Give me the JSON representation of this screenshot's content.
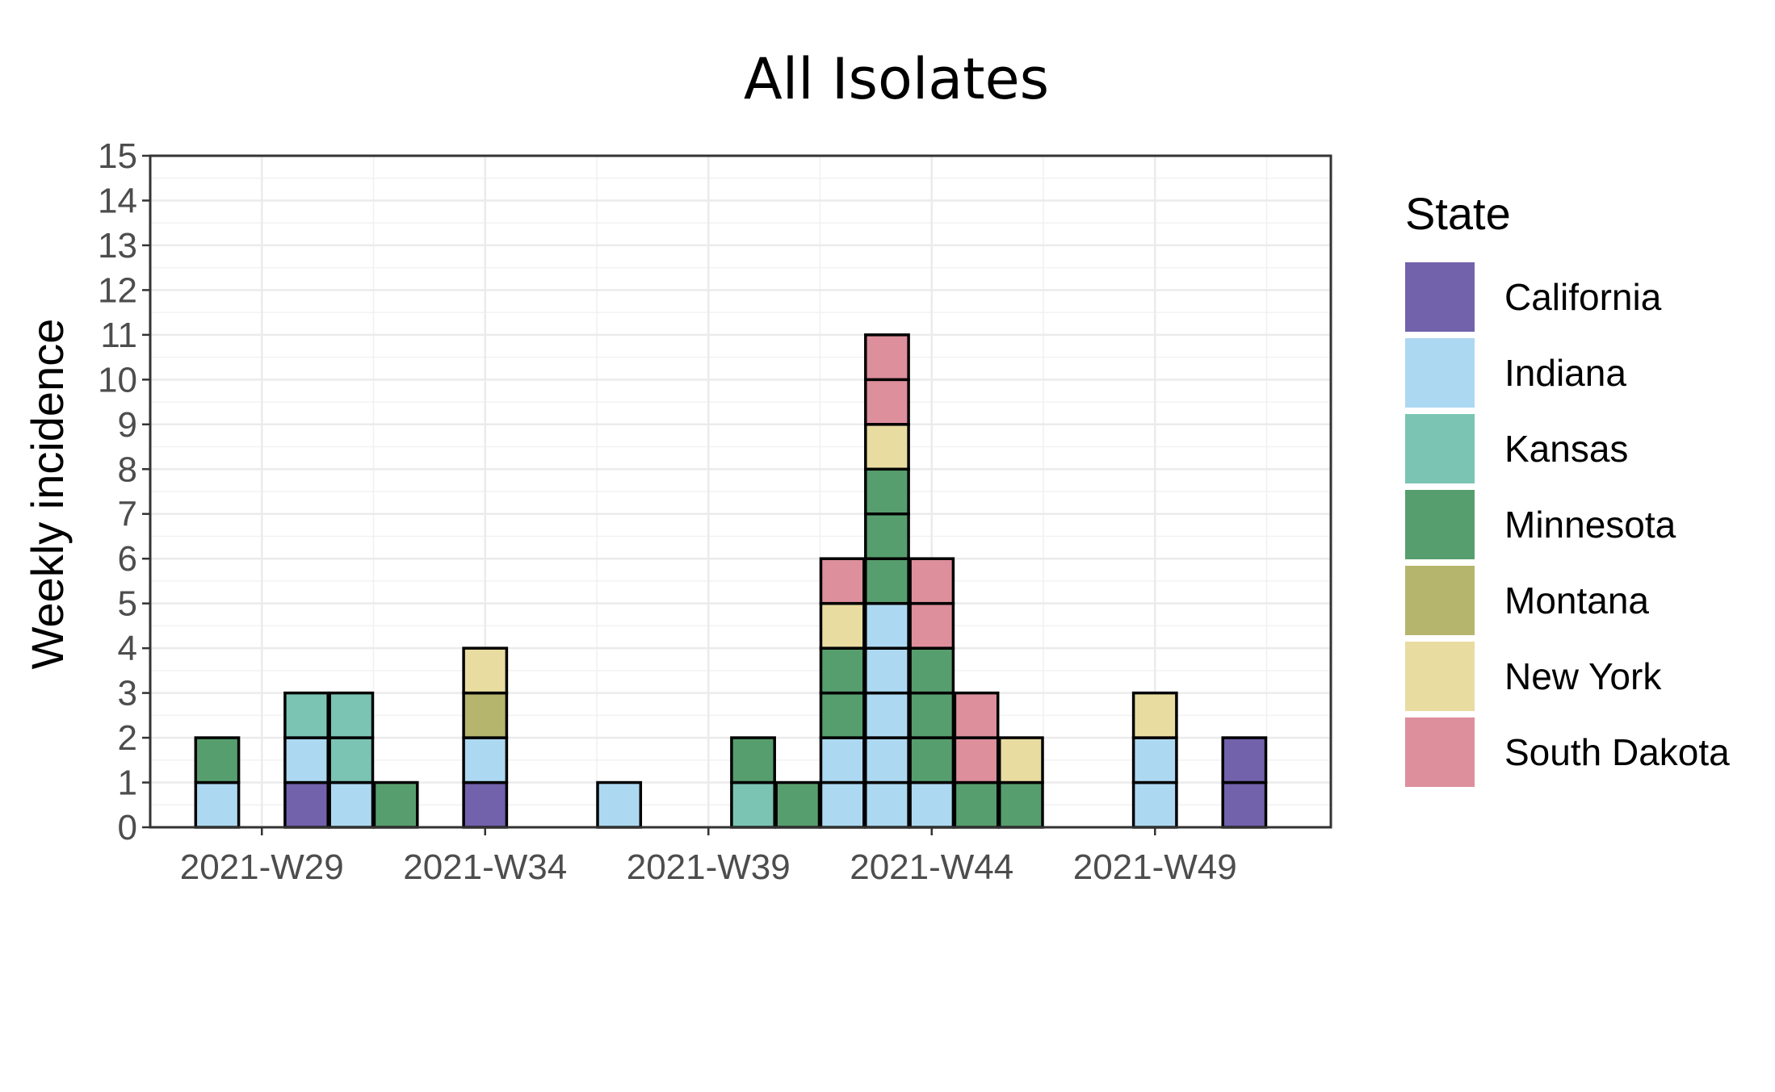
{
  "chart_data": {
    "type": "bar",
    "title": "All Isolates",
    "xlabel": "",
    "ylabel": "Weekly incidence",
    "ylim": [
      0,
      15
    ],
    "y_ticks": [
      "0",
      "1",
      "2",
      "3",
      "4",
      "5",
      "6",
      "7",
      "8",
      "9",
      "10",
      "11",
      "12",
      "13",
      "14",
      "15"
    ],
    "x_ticks": [
      "2021-W29",
      "2021-W34",
      "2021-W39",
      "2021-W44",
      "2021-W49"
    ],
    "x_tick_weeks": [
      29,
      34,
      39,
      44,
      49
    ],
    "xlim_weeks": [
      27,
      51
    ],
    "grid": true,
    "legend_title": "State",
    "legend_position": "right",
    "stacked": true,
    "series": [
      {
        "name": "California",
        "color": "#7262AC",
        "weeks": [
          30,
          34,
          51
        ],
        "values": [
          1,
          1,
          2
        ]
      },
      {
        "name": "Indiana",
        "color": "#ADD8F1",
        "weeks": [
          28,
          30,
          31,
          34,
          37,
          42,
          43,
          44,
          49
        ],
        "values": [
          1,
          1,
          1,
          1,
          1,
          2,
          5,
          1,
          2
        ]
      },
      {
        "name": "Kansas",
        "color": "#7BC4B4",
        "weeks": [
          30,
          31,
          40
        ],
        "values": [
          1,
          2,
          1
        ]
      },
      {
        "name": "Minnesota",
        "color": "#579E6E",
        "weeks": [
          28,
          32,
          40,
          41,
          42,
          43,
          44,
          45,
          46
        ],
        "values": [
          1,
          1,
          1,
          1,
          2,
          3,
          3,
          1,
          1
        ]
      },
      {
        "name": "Montana",
        "color": "#B6B56E",
        "weeks": [
          34
        ],
        "values": [
          1
        ]
      },
      {
        "name": "New York",
        "color": "#E8DCA0",
        "weeks": [
          34,
          42,
          43,
          46,
          49
        ],
        "values": [
          1,
          1,
          1,
          1,
          1
        ]
      },
      {
        "name": "South Dakota",
        "color": "#DD8F9C",
        "weeks": [
          42,
          43,
          44,
          45
        ],
        "values": [
          1,
          2,
          2,
          2
        ]
      }
    ]
  }
}
